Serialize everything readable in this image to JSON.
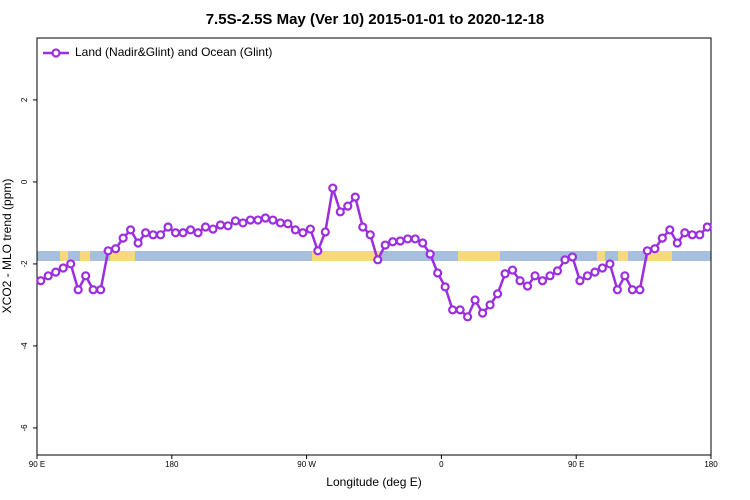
{
  "chart_data": {
    "type": "line",
    "title": "7.5S-2.5S May (Ver 10)   2015-01-01 to 2020-12-18",
    "x_label": "Longitude (deg E)",
    "y_label": "XCO2 - MLO trend (ppm)",
    "xlim": [
      90,
      540
    ],
    "xticks": [
      {
        "value": 90,
        "label": "90 E"
      },
      180,
      {
        "value": 270,
        "label": "90 W"
      },
      {
        "value": 360,
        "label": "0"
      },
      {
        "value": 450,
        "label": "90 E"
      },
      {
        "value": 540,
        "label": "180"
      }
    ],
    "ylim": [
      -6.66,
      3.51
    ],
    "yticks": [
      -6,
      -4,
      -2,
      0,
      2
    ],
    "legend": "top-left",
    "x": [
      92.5,
      97.5,
      102.5,
      107.5,
      112.5,
      117.5,
      122.5,
      127.5,
      132.5,
      137.5,
      142.5,
      147.5,
      152.5,
      157.5,
      162.5,
      167.5,
      172.5,
      177.5,
      182.5,
      187.5,
      192.5,
      197.5,
      202.5,
      207.5,
      212.5,
      217.5,
      222.5,
      227.5,
      232.5,
      237.5,
      242.5,
      247.5,
      252.5,
      257.5,
      262.5,
      267.5,
      272.5,
      277.5,
      282.5,
      287.5,
      292.5,
      297.5,
      302.5,
      307.5,
      312.5,
      317.5,
      322.5,
      327.5,
      332.5,
      337.5,
      342.5,
      347.5,
      352.5,
      357.5,
      362.5,
      367.5,
      372.5,
      377.5,
      382.5,
      387.5,
      392.5,
      397.5,
      402.5,
      407.5,
      412.5,
      417.5,
      422.5,
      427.5,
      432.5,
      437.5,
      442.5,
      447.5,
      452.5,
      457.5,
      462.5,
      467.5,
      472.5,
      477.5,
      482.5,
      487.5,
      492.5,
      497.5,
      502.5,
      507.5,
      512.5,
      517.5,
      522.5,
      527.5,
      532.5,
      537.5
    ],
    "series": [
      {
        "name": "Land (Nadir&Glint) and Ocean (Glint)",
        "color": "#9b2ee0",
        "values": [
          -2.41,
          -2.29,
          -2.2,
          -2.1,
          -2.0,
          -2.63,
          -2.29,
          -2.63,
          -2.63,
          -1.68,
          -1.63,
          -1.37,
          -1.17,
          -1.49,
          -1.24,
          -1.29,
          -1.29,
          -1.1,
          -1.24,
          -1.24,
          -1.17,
          -1.24,
          -1.1,
          -1.15,
          -1.05,
          -1.07,
          -0.95,
          -1.0,
          -0.93,
          -0.93,
          -0.88,
          -0.93,
          -1.0,
          -1.02,
          -1.17,
          -1.24,
          -1.15,
          -1.68,
          -1.22,
          -0.15,
          -0.73,
          -0.59,
          -0.37,
          -1.1,
          -1.29,
          -1.9,
          -1.54,
          -1.46,
          -1.44,
          -1.39,
          -1.39,
          -1.49,
          -1.76,
          -2.22,
          -2.56,
          -3.12,
          -3.12,
          -3.29,
          -2.88,
          -3.2,
          -3.0,
          -2.73,
          -2.24,
          -2.15,
          -2.41,
          -2.54,
          -2.29,
          -2.41,
          -2.29,
          -2.17,
          -1.9,
          -1.83,
          -2.41,
          -2.29,
          -2.2,
          -2.1,
          -2.0,
          -2.63,
          -2.29,
          -2.63,
          -2.63,
          -1.68,
          -1.63,
          -1.37,
          -1.17,
          -1.49,
          -1.24,
          -1.29,
          -1.29,
          -1.1
        ]
      }
    ]
  }
}
